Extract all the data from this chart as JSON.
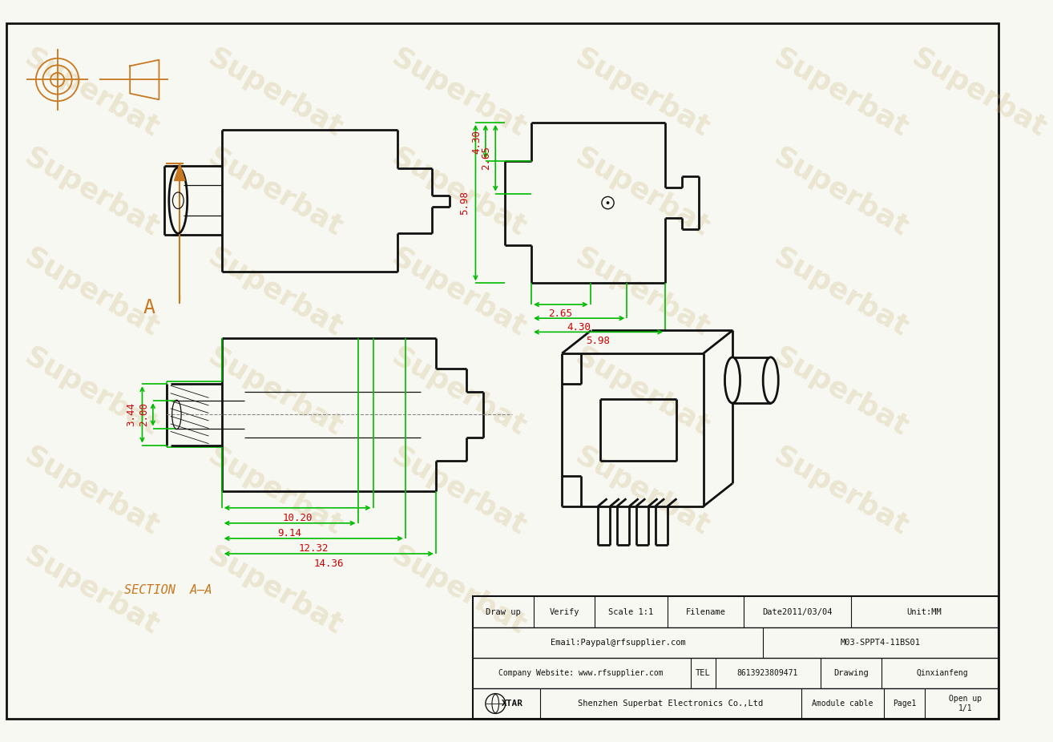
{
  "bg_color": "#f8f8f3",
  "line_color_black": "#111111",
  "line_color_green": "#00bb00",
  "line_color_red": "#cc0000",
  "line_color_brown": "#c87820",
  "watermark_color": "#c8b878",
  "watermark_text": "Superbat",
  "watermark_alpha": 0.28,
  "section_label": "SECTION  A—A",
  "dims_green_vert": [
    "5.98",
    "4.30",
    "2.65"
  ],
  "dims_red_horiz": [
    "2.65",
    "4.30",
    "5.98"
  ],
  "dims_bottom_vert": [
    "3.44",
    "2.00"
  ],
  "dims_bottom_horiz": [
    "10.20",
    "9.14",
    "12.32",
    "14.36"
  ]
}
